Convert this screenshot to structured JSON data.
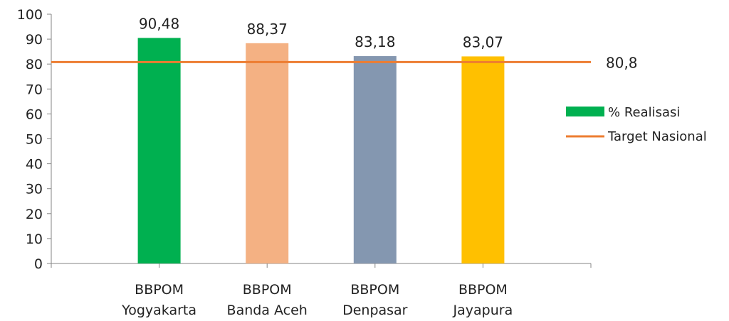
{
  "chart_data": {
    "type": "bar",
    "categories": [
      [
        "BBPOM",
        "Yogyakarta"
      ],
      [
        "BBPOM",
        "Banda Aceh"
      ],
      [
        "BBPOM",
        "Denpasar"
      ],
      [
        "BBPOM",
        "Jayapura"
      ]
    ],
    "series": [
      {
        "name": "% Realisasi",
        "values": [
          90.48,
          88.37,
          83.18,
          83.07
        ],
        "value_labels": [
          "90,48",
          "88,37",
          "83,18",
          "83,07"
        ],
        "colors": [
          "#00B050",
          "#F4B183",
          "#8497B0",
          "#FFC000"
        ]
      }
    ],
    "target": {
      "name": "Target Nasional",
      "value": 80.8,
      "value_label": "80,8",
      "color": "#ED7D31"
    },
    "ylim": [
      0,
      100
    ],
    "yticks": [
      "0",
      "10",
      "20",
      "30",
      "40",
      "50",
      "60",
      "70",
      "80",
      "90",
      "100"
    ],
    "legend_position": "right",
    "legend_swatch_color": "#00B050",
    "grid": false,
    "title": "",
    "xlabel": "",
    "ylabel": ""
  }
}
